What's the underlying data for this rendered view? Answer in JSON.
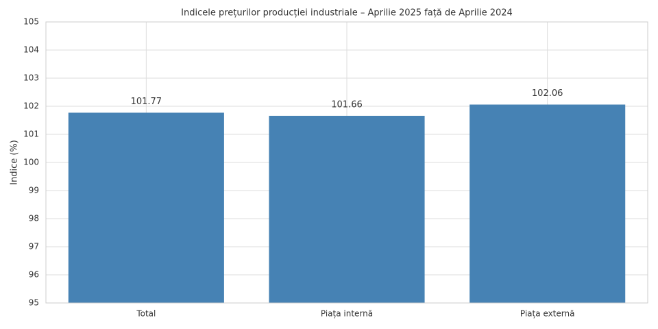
{
  "chart_data": {
    "type": "bar",
    "title": "Indicele prețurilor producției industriale – Aprilie 2025 față de Aprilie 2024",
    "y_label": "Indice (%)",
    "categories": [
      "Total",
      "Piața internă",
      "Piața externă"
    ],
    "values": [
      101.77,
      101.66,
      102.06
    ],
    "color": "#4682b4",
    "ylim": [
      95,
      105
    ],
    "yticks": [
      95,
      96,
      97,
      98,
      99,
      100,
      101,
      102,
      103,
      104,
      105
    ],
    "grid": true
  }
}
